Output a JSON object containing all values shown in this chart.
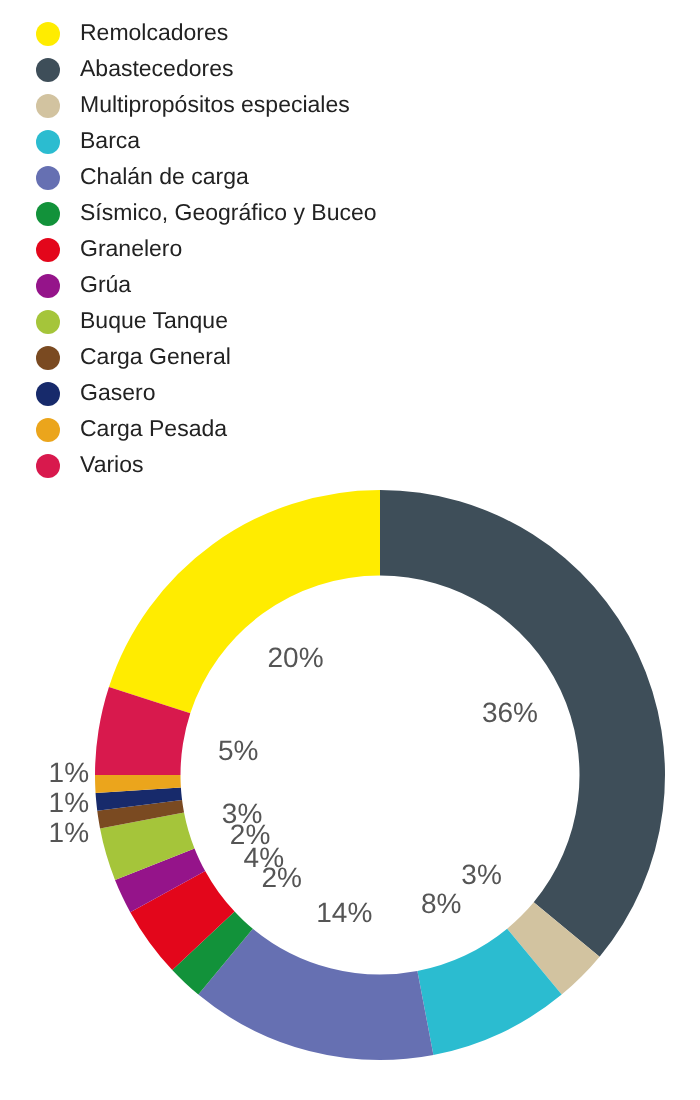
{
  "chart_data": {
    "type": "donut",
    "categories": [
      "Remolcadores",
      "Abastecedores",
      "Multipropósitos especiales",
      "Barca",
      "Chalán de carga",
      "Sísmico, Geográfico y Buceo",
      "Granelero",
      "Grúa",
      "Buque Tanque",
      "Carga General",
      "Gasero",
      "Carga Pesada",
      "Varios"
    ],
    "values": [
      20,
      36,
      3,
      8,
      14,
      2,
      4,
      2,
      3,
      1,
      1,
      1,
      5
    ],
    "colors": [
      "#ffec00",
      "#3e4e59",
      "#d2c3a0",
      "#2bbcd0",
      "#6670b2",
      "#12923a",
      "#e3061b",
      "#95148a",
      "#a5c53a",
      "#7a4a21",
      "#172a6b",
      "#eba51c",
      "#d8194d"
    ],
    "value_labels": [
      "20%",
      "36%",
      "3%",
      "8%",
      "14%",
      "2%",
      "4%",
      "2%",
      "3%",
      "1%",
      "1%",
      "1%",
      "5%"
    ],
    "legend": "top left"
  }
}
